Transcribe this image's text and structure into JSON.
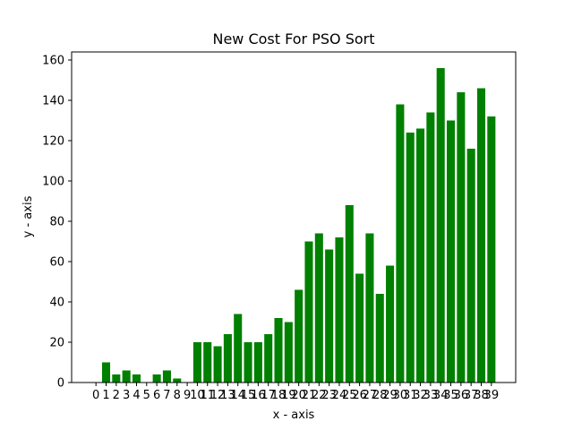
{
  "chart_data": {
    "type": "bar",
    "title": "New Cost For PSO Sort",
    "xlabel": "x - axis",
    "ylabel": "y - axis",
    "categories": [
      "0",
      "1",
      "2",
      "3",
      "4",
      "5",
      "6",
      "7",
      "8",
      "9",
      "10",
      "11",
      "12",
      "13",
      "14",
      "15",
      "16",
      "17",
      "18",
      "19",
      "20",
      "21",
      "22",
      "23",
      "24",
      "25",
      "26",
      "27",
      "28",
      "29",
      "30",
      "31",
      "32",
      "33",
      "34",
      "35",
      "36",
      "37",
      "38",
      "39"
    ],
    "values": [
      0,
      10,
      4,
      6,
      4,
      0,
      4,
      6,
      2,
      0,
      20,
      20,
      18,
      24,
      34,
      20,
      20,
      24,
      32,
      30,
      46,
      70,
      74,
      66,
      72,
      88,
      54,
      74,
      44,
      58,
      138,
      124,
      126,
      134,
      156,
      130,
      144,
      116,
      146,
      132
    ],
    "ylim": [
      0,
      164
    ],
    "yticks": [
      0,
      20,
      40,
      60,
      80,
      100,
      120,
      140,
      160
    ],
    "bar_color": "#008000",
    "grid": false,
    "legend": "none"
  }
}
